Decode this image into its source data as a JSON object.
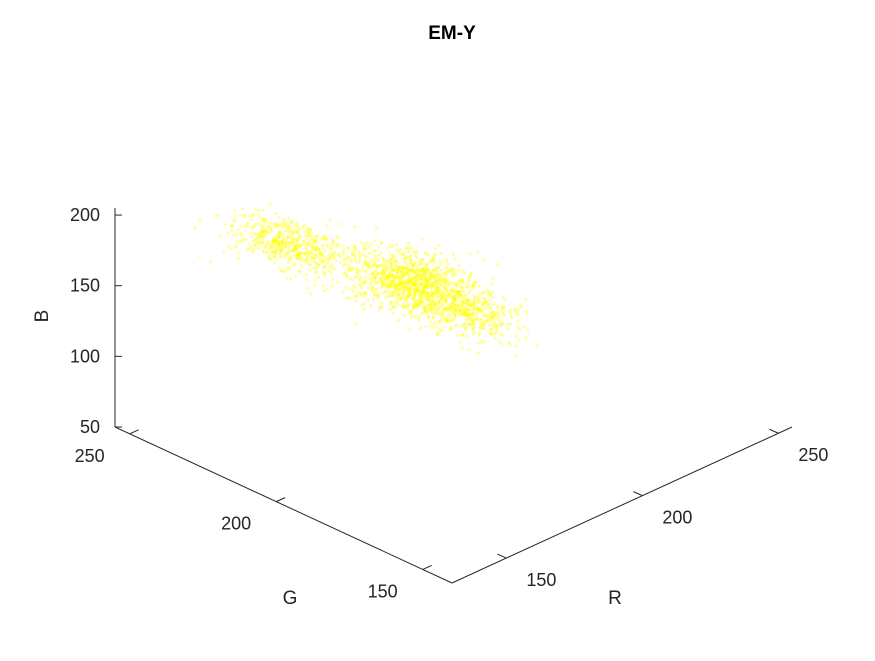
{
  "chart_data": {
    "type": "scatter3d",
    "title": "EM-Y",
    "xlabel": "R",
    "ylabel": "G",
    "zlabel": "B",
    "xlim": [
      130,
      255
    ],
    "ylim": [
      140,
      255
    ],
    "zlim": [
      50,
      205
    ],
    "xticks": [
      150,
      200,
      250
    ],
    "yticks": [
      150,
      200,
      250
    ],
    "zticks": [
      50,
      100,
      150,
      200
    ],
    "grid": false,
    "legend": "none",
    "point_color": "#ffff00",
    "point_opacity": 0.35,
    "clusters": [
      {
        "r_mean": 163,
        "g_mean": 227,
        "b_mean": 178,
        "r_sd": 6,
        "g_sd": 6,
        "b_sd": 8,
        "n": 500
      },
      {
        "r_mean": 186,
        "g_mean": 206,
        "b_mean": 150,
        "r_sd": 8,
        "g_sd": 7,
        "b_sd": 10,
        "n": 1100
      },
      {
        "r_mean": 198,
        "g_mean": 197,
        "b_mean": 126,
        "r_sd": 6,
        "g_sd": 5,
        "b_sd": 8,
        "n": 350
      }
    ]
  }
}
